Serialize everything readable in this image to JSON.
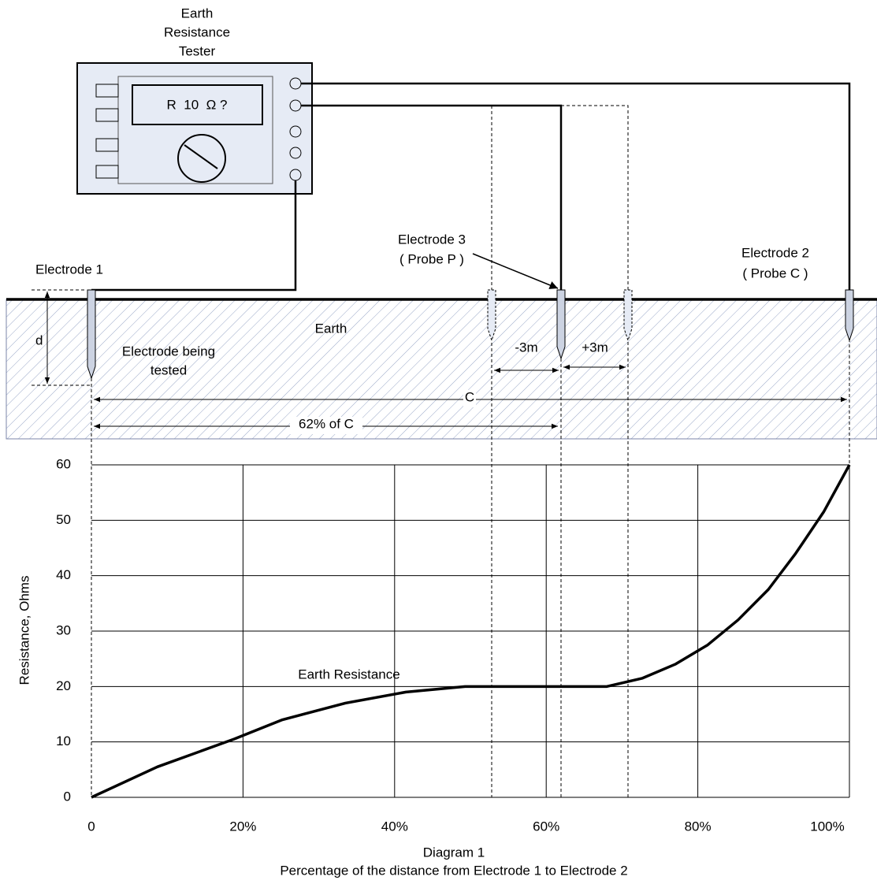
{
  "diagram": {
    "tester": {
      "label_lines": [
        "Earth",
        "Resistance",
        "Tester"
      ],
      "display": "R  10  Ω ?"
    },
    "electrode_1": "Electrode 1",
    "electrode_3": [
      "Electrode 3",
      "( Probe P )"
    ],
    "electrode_2": [
      "Electrode 2",
      "( Probe C )"
    ],
    "earth_label": "Earth",
    "depth_label": "d",
    "tested_label": [
      "Electrode being",
      "tested"
    ],
    "dimensions": {
      "minus": "-3m",
      "plus": "+3m",
      "full": "C",
      "part": "62% of C"
    }
  },
  "chart_data": {
    "type": "line",
    "y_label": "Resistance, Ohms",
    "annotation": "Earth Resistance",
    "caption": "Diagram 1",
    "x_label": "Percentage of the distance from Electrode 1 to Electrode 2",
    "x": [
      0,
      8.7,
      18.8,
      25.2,
      33.5,
      41.5,
      49.3,
      68,
      72.7,
      77,
      81.3,
      85.3,
      89.3,
      92.9,
      96.6,
      100
    ],
    "series": [
      {
        "color": "#000000",
        "values": [
          0,
          5.5,
          10.5,
          14,
          17,
          19,
          20,
          20,
          21.5,
          24,
          27.5,
          32,
          37.5,
          44,
          51.5,
          60
        ]
      }
    ],
    "xlim": [
      0,
      100
    ],
    "xticks": [
      0,
      {
        "value": 20,
        "label": "20%"
      },
      {
        "value": 40,
        "label": "40%"
      },
      {
        "value": 60,
        "label": "60%"
      },
      {
        "value": 80,
        "label": "80%"
      },
      {
        "value": 100,
        "label": "100%"
      }
    ],
    "ylim": [
      0,
      60
    ],
    "yticks": [
      0,
      10,
      20,
      30,
      40,
      50,
      60
    ],
    "grid": true
  }
}
